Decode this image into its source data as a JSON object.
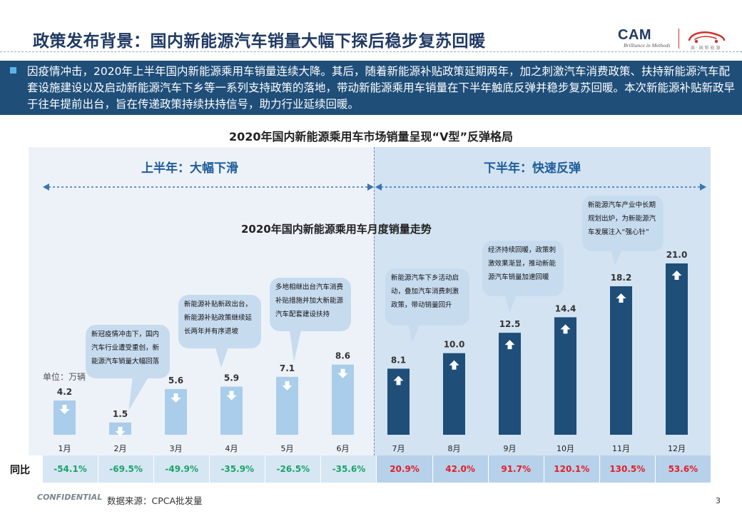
{
  "slide": {
    "title": "政策发布背景：国内新能源汽车销量大幅下探后稳步复苏回暖",
    "intro": "因疫情冲击，2020年上半年国内新能源乘用车销量连续大降。其后，随着新能源补贴政策延期两年，加之刺激汽车消费政策、扶持新能源汽车配套设施建设以及启动新能源汽车下乡等一系列支持政策的落地，带动新能源乘用车销量在下半年触底反弹并稳步复苏回暖。本次新能源补贴新政早于往年提前出台，旨在传递政策持续扶持信号，助力行业延续回暖。",
    "chart_heading": "2020年国内新能源乘用车市场销量呈现“V型”反弹格局",
    "h1_label": "上半年：大幅下滑",
    "h2_label": "下半年：快速反弹",
    "confidential": "CONFIDENTIAL",
    "source": "数据来源：CPCA批发量",
    "page_number": "3"
  },
  "logo": {
    "cam_text": "CAM",
    "cam_tag": "Brilliance in Methods",
    "car_tag": "乘 · 国 新 能 源"
  },
  "colors": {
    "title": "#1f3a64",
    "intro_bg": "#1f4e79",
    "bar_h1": "#a9cdea",
    "bar_h2": "#1f4e79",
    "yoy_negative": "#1aa36a",
    "yoy_positive": "#e0202a"
  },
  "chart_data": {
    "type": "bar",
    "title": "2020年国内新能源乘用车月度销量走势",
    "unit_label": "单位：万辆",
    "categories": [
      "1月",
      "2月",
      "3月",
      "4月",
      "5月",
      "6月",
      "7月",
      "8月",
      "9月",
      "10月",
      "11月",
      "12月"
    ],
    "values": [
      4.2,
      1.5,
      5.6,
      5.9,
      7.1,
      8.6,
      8.1,
      10.0,
      12.5,
      14.4,
      18.2,
      21.0
    ],
    "value_labels": [
      "4.2",
      "1.5",
      "5.6",
      "5.9",
      "7.1",
      "8.6",
      "8.1",
      "10.0",
      "12.5",
      "14.4",
      "18.2",
      "21.0"
    ],
    "trend": [
      "down",
      "down",
      "down",
      "down",
      "down",
      "down",
      "up",
      "up",
      "up",
      "up",
      "up",
      "up"
    ],
    "ylim": [
      0,
      21
    ],
    "grid": false,
    "yoy_label": "同比",
    "yoy": [
      "-54.1%",
      "-69.5%",
      "-49.9%",
      "-35.9%",
      "-26.5%",
      "-35.6%",
      "20.9%",
      "42.0%",
      "91.7%",
      "120.1%",
      "130.5%",
      "53.6%"
    ],
    "annotations": [
      {
        "month": "2月",
        "text": "新冠疫情冲击下，国内汽车行业遭受重创，新能源汽车销量大幅回落"
      },
      {
        "month": "4月",
        "text": "新能源补贴新政出台，新能源补贴政策继续延长两年并有序退坡"
      },
      {
        "month": "5月",
        "text": "多地相继出台汽车消费补贴措施并加大新能源汽车配套建设扶持"
      },
      {
        "month": "7月",
        "text": "新能源汽车下乡活动启动，叠加汽车消费刺激政策，带动销量回升"
      },
      {
        "month": "9月",
        "text": "经济持续回暖，政策刺激效果渐显，推动新能源汽车销量加速回暖"
      },
      {
        "month": "11月",
        "text": "新能源汽车产业中长期规划出炉，为新能源汽车发展注入“强心针”"
      }
    ]
  }
}
